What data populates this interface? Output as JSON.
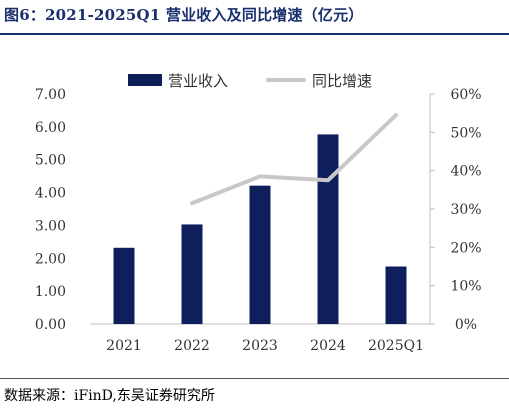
{
  "figure": {
    "title": "图6：2021-2025Q1 营业收入及同比增速（亿元）",
    "source": "数据来源：iFinD,东吴证券研究所"
  },
  "colors": {
    "bar": "#0e1f5b",
    "line": "#c8c8c8",
    "title": "#1a2f6e",
    "axis": "#bfbfbf"
  },
  "chart_data": {
    "type": "bar+line",
    "title": "",
    "categories": [
      "2021",
      "2022",
      "2023",
      "2024",
      "2025Q1"
    ],
    "series": [
      {
        "name": "营业收入",
        "type": "bar",
        "axis": "left",
        "values": [
          2.32,
          3.03,
          4.21,
          5.77,
          1.75
        ]
      },
      {
        "name": "同比增速",
        "type": "line",
        "axis": "right",
        "values": [
          null,
          31.5,
          38.5,
          37.5,
          54.5
        ]
      }
    ],
    "y_left": {
      "min": 0,
      "max": 7,
      "ticks": [
        "0.00",
        "1.00",
        "2.00",
        "3.00",
        "4.00",
        "5.00",
        "6.00",
        "7.00"
      ]
    },
    "y_right": {
      "min": 0,
      "max": 60,
      "ticks": [
        "0%",
        "10%",
        "20%",
        "30%",
        "40%",
        "50%",
        "60%"
      ]
    },
    "grid": false,
    "legend_position": "top"
  }
}
